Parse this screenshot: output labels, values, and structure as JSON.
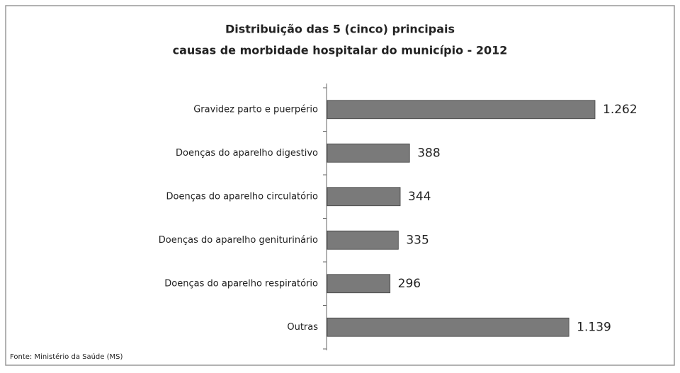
{
  "chart_data": {
    "type": "bar",
    "orientation": "horizontal",
    "title": "Distribuição das 5 (cinco) principais",
    "subtitle": "causas de morbidade hospitalar do município - 2012",
    "categories": [
      "Gravidez parto e puerpério",
      "Doenças do aparelho digestivo",
      "Doenças do aparelho circulatório",
      "Doenças do aparelho geniturinário",
      "Doenças do aparelho respiratório",
      "Outras"
    ],
    "values": [
      1262,
      388,
      344,
      335,
      296,
      1139
    ],
    "value_labels": [
      "1.262",
      "388",
      "344",
      "335",
      "296",
      "1.139"
    ],
    "color": "#7a7a7a",
    "source": "Fonte: Ministério da Saúde (MS)"
  }
}
